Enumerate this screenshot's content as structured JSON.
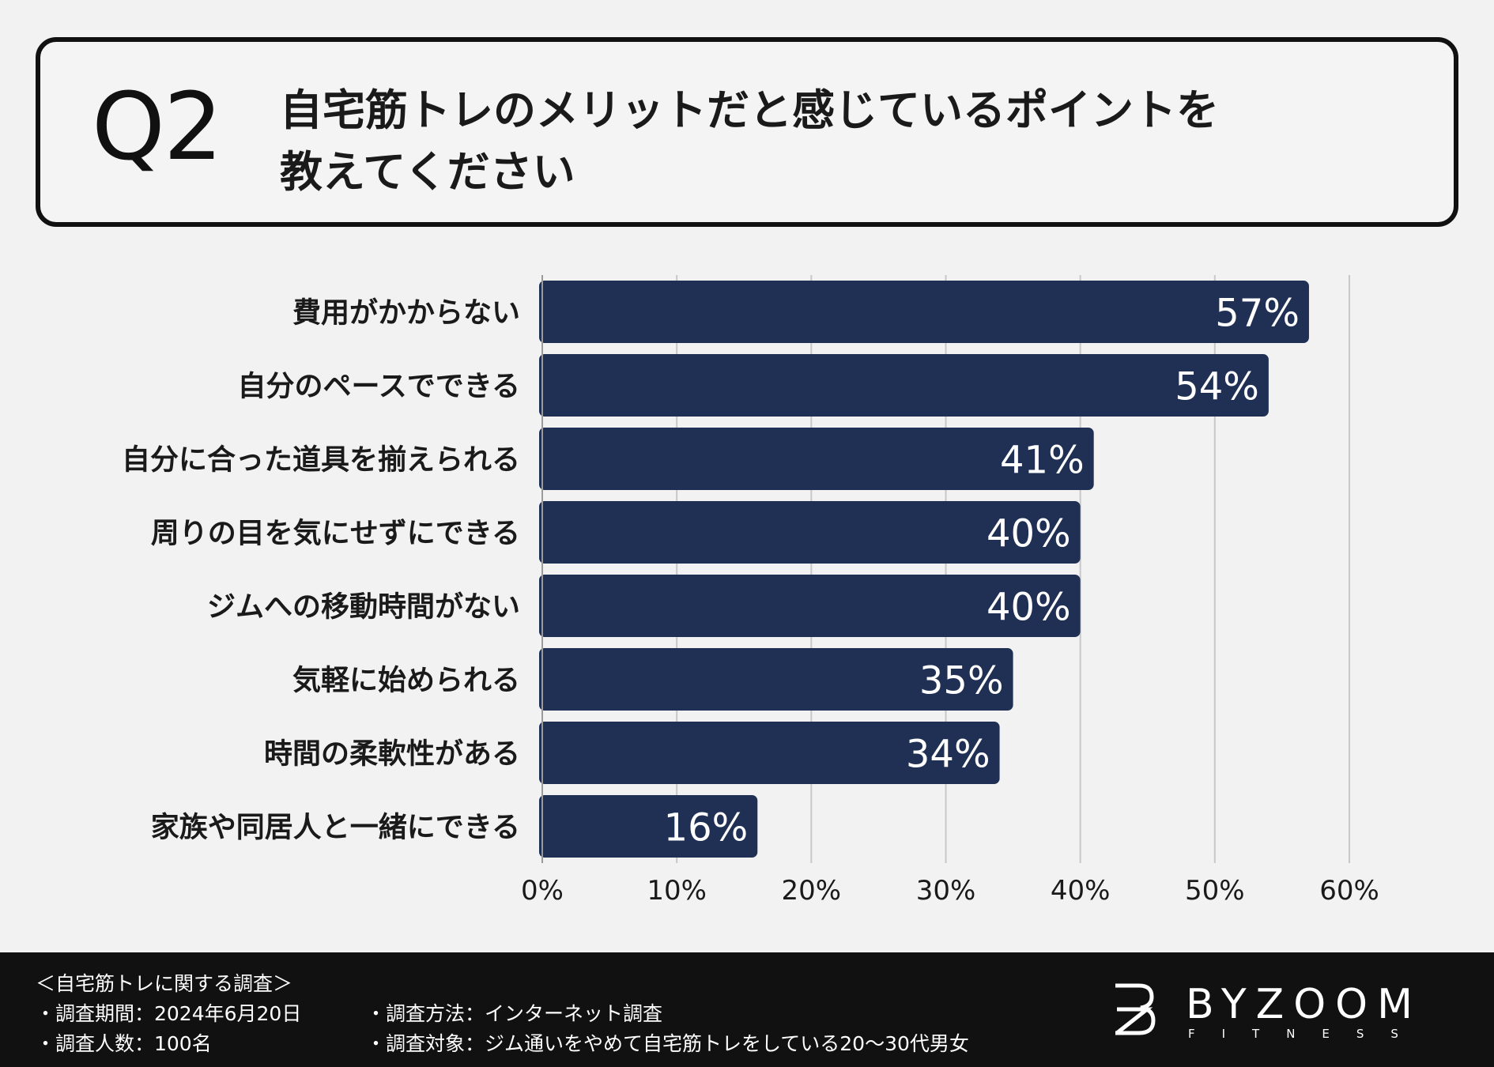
{
  "question": {
    "number": "Q2",
    "line1": "自宅筋トレのメリットだと感じているポイントを",
    "line2": "教えてください"
  },
  "chart_data": {
    "type": "bar",
    "orientation": "horizontal",
    "categories": [
      "費用がかからない",
      "自分のペースでできる",
      "自分に合った道具を揃えられる",
      "周りの目を気にせずにできる",
      "ジムへの移動時間がない",
      "気軽に始められる",
      "時間の柔軟性がある",
      "家族や同居人と一緒にできる"
    ],
    "values": [
      57,
      54,
      41,
      40,
      40,
      35,
      34,
      16
    ],
    "value_labels": [
      "57%",
      "54%",
      "41%",
      "40%",
      "40%",
      "35%",
      "34%",
      "16%"
    ],
    "xlim": [
      0,
      60
    ],
    "x_ticks": [
      "0%",
      "10%",
      "20%",
      "30%",
      "40%",
      "50%",
      "60%"
    ],
    "grid": true,
    "bar_color": "#1f3054"
  },
  "footer": {
    "survey_title": "＜自宅筋トレに関する調査＞",
    "period": "・調査期間：2024年6月20日",
    "respondents": "・調査人数：100名",
    "method": "・調査方法：インターネット調査",
    "target": "・調査対象：ジム通いをやめて自宅筋トレをしている20〜30代男女",
    "brand": "BYZOOM",
    "brand_sub": "FITNESS"
  }
}
